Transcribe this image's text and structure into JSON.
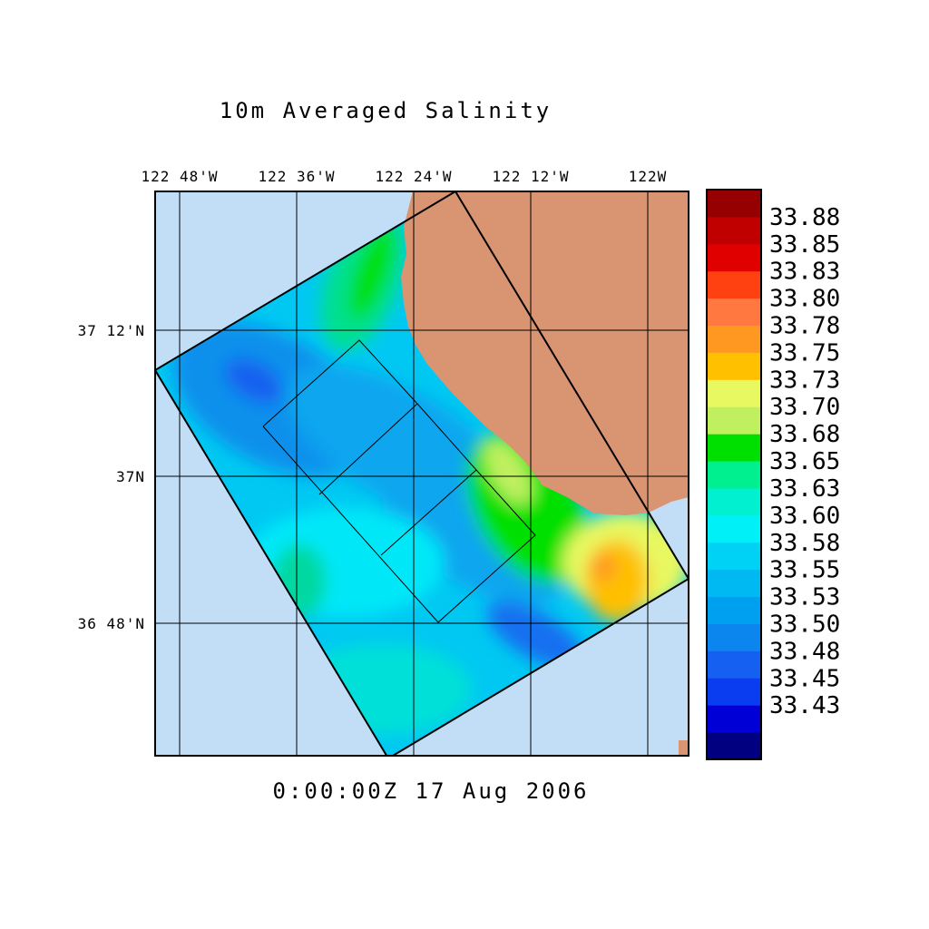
{
  "title": "10m Averaged Salinity",
  "timestamp": "0:00:00Z  17 Aug 2006",
  "colors": {
    "ocean_outside": "#c2def7",
    "land": "#d99472",
    "grid": "#000000"
  },
  "lon_ticks": [
    "122 48'W",
    "122 36'W",
    "122 24'W",
    "122 12'W",
    "122W"
  ],
  "lat_ticks": [
    "37 12'N",
    "37N",
    "36 48'N"
  ],
  "colorbar": {
    "labels": [
      "33.88",
      "33.85",
      "33.83",
      "33.80",
      "33.78",
      "33.75",
      "33.73",
      "33.70",
      "33.68",
      "33.65",
      "33.63",
      "33.60",
      "33.58",
      "33.55",
      "33.53",
      "33.50",
      "33.48",
      "33.45",
      "33.43"
    ],
    "colors": [
      "#000080",
      "#0000d6",
      "#0a3cf0",
      "#1560f0",
      "#0b86ee",
      "#00a0f0",
      "#00b8f2",
      "#00d2f5",
      "#00f0f8",
      "#00f0d0",
      "#00f090",
      "#00e000",
      "#c0f060",
      "#e8f860",
      "#ffc000",
      "#ff9820",
      "#ff7840",
      "#ff4010",
      "#e00000",
      "#c00000",
      "#960000"
    ]
  },
  "chart_data": {
    "type": "heatmap",
    "title": "10m Averaged Salinity",
    "variable": "Salinity",
    "depth": "10m",
    "time": "0:00:00Z  17 Aug 2006",
    "x_axis_ticks": [
      "122 48'W",
      "122 36'W",
      "122 24'W",
      "122 12'W",
      "122W"
    ],
    "y_axis_ticks": [
      "37 12'N",
      "37N",
      "36 48'N"
    ],
    "color_scale": [
      33.43,
      33.45,
      33.48,
      33.5,
      33.53,
      33.55,
      33.58,
      33.6,
      33.63,
      33.65,
      33.68,
      33.7,
      33.73,
      33.75,
      33.78,
      33.8,
      33.83,
      33.85,
      33.88
    ]
  }
}
